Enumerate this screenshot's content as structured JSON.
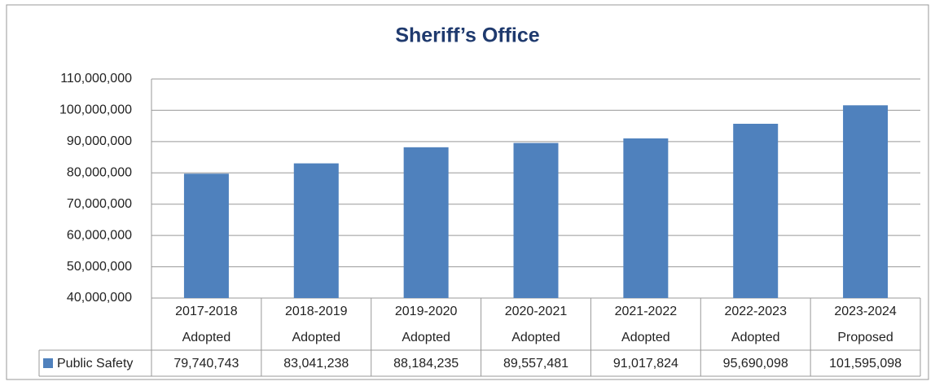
{
  "chart_data": {
    "type": "bar",
    "title": "Sheriff’s Office",
    "categories": [
      [
        "2017-2018",
        "Adopted"
      ],
      [
        "2018-2019",
        "Adopted"
      ],
      [
        "2019-2020",
        "Adopted"
      ],
      [
        "2020-2021",
        "Adopted"
      ],
      [
        "2021-2022",
        "Adopted"
      ],
      [
        "2022-2023",
        "Adopted"
      ],
      [
        "2023-2024",
        "Proposed"
      ]
    ],
    "series": [
      {
        "name": "Public Safety",
        "color": "#4f81bd",
        "values": [
          79740743,
          83041238,
          88184235,
          89557481,
          91017824,
          95690098,
          101595098
        ],
        "value_labels": [
          "79,740,743",
          "83,041,238",
          "88,184,235",
          "89,557,481",
          "91,017,824",
          "95,690,098",
          "101,595,098"
        ]
      }
    ],
    "ylim": [
      40000000,
      110000000
    ],
    "yticks": [
      {
        "value": 40000000,
        "label": "40,000,000"
      },
      {
        "value": 50000000,
        "label": "50,000,000"
      },
      {
        "value": 60000000,
        "label": "60,000,000"
      },
      {
        "value": 70000000,
        "label": "70,000,000"
      },
      {
        "value": 80000000,
        "label": "80,000,000"
      },
      {
        "value": 90000000,
        "label": "90,000,000"
      },
      {
        "value": 100000000,
        "label": "100,000,000"
      },
      {
        "value": 110000000,
        "label": "110,000,000"
      }
    ],
    "grid": true
  }
}
